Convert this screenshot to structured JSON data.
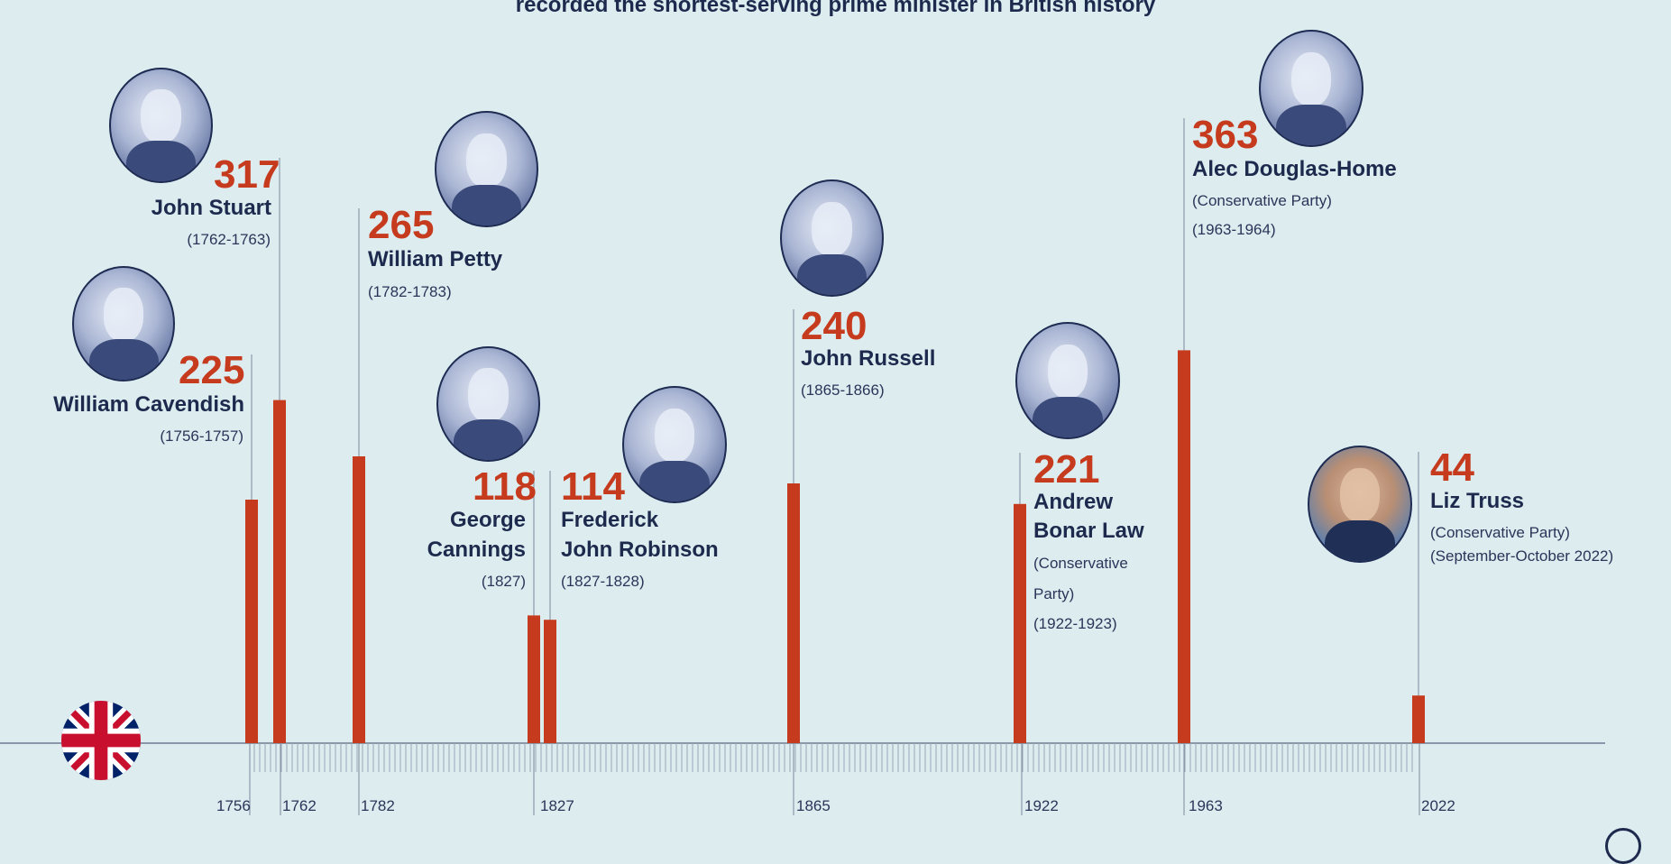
{
  "subtitle": "recorded the shortest-serving prime minister in British history",
  "chart_data": {
    "type": "bar",
    "xlabel": "",
    "ylabel": "",
    "grid": false,
    "axis_ticks": [
      "1756",
      "1762",
      "1782",
      "1827",
      "1865",
      "1922",
      "1963",
      "2022"
    ],
    "items": [
      {
        "name": "William Cavendish",
        "value": 225,
        "value_label": "225",
        "years": "(1756-1757)",
        "year": 1756
      },
      {
        "name": "John Stuart",
        "value": 317,
        "value_label": "317",
        "years": "(1762-1763)",
        "year": 1762
      },
      {
        "name": "William Petty",
        "value": 265,
        "value_label": "265",
        "years": "(1782-1783)",
        "year": 1782
      },
      {
        "name_lines": [
          "George",
          "Cannings"
        ],
        "value": 118,
        "value_label": "118",
        "years": "(1827)",
        "year": 1827
      },
      {
        "name_lines": [
          "Frederick",
          "John Robinson"
        ],
        "value": 114,
        "value_label": "114",
        "years": "(1827-1828)",
        "year": 1827
      },
      {
        "name": "John Russell",
        "value": 240,
        "value_label": "240",
        "years": "(1865-1866)",
        "year": 1865
      },
      {
        "name_lines": [
          "Andrew",
          "Bonar Law"
        ],
        "value": 221,
        "value_label": "221",
        "party_lines": [
          "(Conservative",
          "Party)"
        ],
        "years": "(1922-1923)",
        "year": 1922
      },
      {
        "name": "Alec Douglas-Home",
        "value": 363,
        "value_label": "363",
        "party": "(Conservative Party)",
        "years": "(1963-1964)",
        "year": 1963
      },
      {
        "name": "Liz Truss",
        "value": 44,
        "value_label": "44",
        "party": "(Conservative Party)",
        "years": "(September-October 2022)",
        "year": 2022
      }
    ]
  },
  "colors": {
    "bar": "#c63a1d",
    "text": "#1d2a4d",
    "value": "#c63a1d",
    "background": "#dcecef",
    "axis": "#8b97a8"
  },
  "icons": {
    "flag": "union-jack-flag-icon",
    "portraits": "portrait-photo"
  }
}
